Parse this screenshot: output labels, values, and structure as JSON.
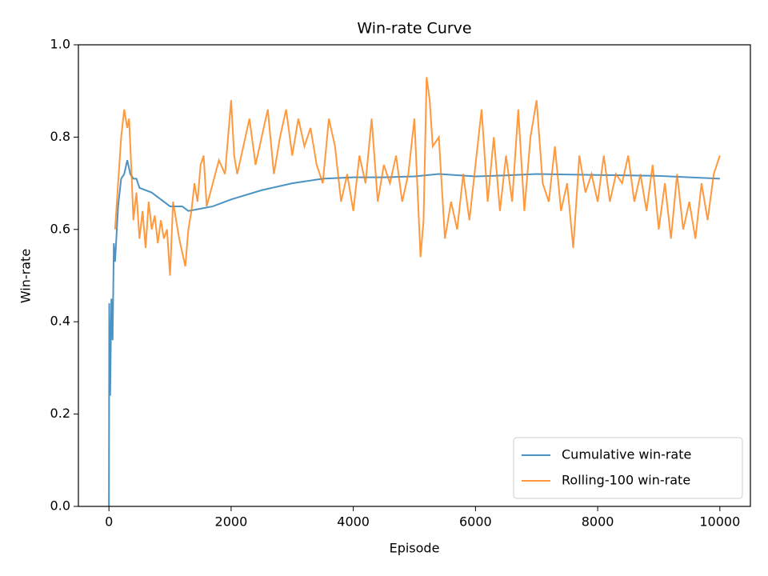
{
  "chart_data": {
    "type": "line",
    "title": "Win-rate Curve",
    "x_label": "Episode",
    "y_label": "Win-rate",
    "xlim": [
      -500,
      10500
    ],
    "ylim": [
      0,
      1
    ],
    "xticks": [
      0,
      2000,
      4000,
      6000,
      8000,
      10000
    ],
    "yticks": [
      {
        "value": 0,
        "label": "0.0"
      },
      {
        "value": 0.2,
        "label": "0.2"
      },
      {
        "value": 0.4,
        "label": "0.4"
      },
      {
        "value": 0.6,
        "label": "0.6"
      },
      {
        "value": 0.8,
        "label": "0.8"
      },
      {
        "value": 1,
        "label": "1.0"
      }
    ],
    "legend": "lower right",
    "series": [
      {
        "name": "Cumulative win-rate",
        "color": "#1f77b4",
        "x": [
          0,
          5,
          20,
          40,
          60,
          80,
          100,
          150,
          200,
          250,
          300,
          350,
          400,
          450,
          500,
          700,
          900,
          1000,
          1200,
          1300,
          1500,
          1700,
          2000,
          2500,
          3000,
          3500,
          4000,
          4500,
          5000,
          5400,
          6000,
          6500,
          7000,
          8000,
          9000,
          9500,
          10000
        ],
        "values": [
          0,
          0.44,
          0.24,
          0.45,
          0.36,
          0.57,
          0.53,
          0.65,
          0.71,
          0.72,
          0.75,
          0.72,
          0.71,
          0.71,
          0.69,
          0.68,
          0.66,
          0.65,
          0.65,
          0.64,
          0.645,
          0.65,
          0.665,
          0.685,
          0.7,
          0.71,
          0.713,
          0.713,
          0.715,
          0.72,
          0.715,
          0.717,
          0.72,
          0.718,
          0.716,
          0.713,
          0.71
        ]
      },
      {
        "name": "Rolling-100 win-rate",
        "color": "#ff7f0e",
        "x": [
          100,
          150,
          200,
          250,
          300,
          330,
          370,
          400,
          450,
          500,
          550,
          600,
          650,
          700,
          750,
          800,
          850,
          900,
          950,
          1000,
          1050,
          1100,
          1150,
          1200,
          1250,
          1300,
          1350,
          1400,
          1450,
          1500,
          1550,
          1600,
          1700,
          1800,
          1900,
          2000,
          2050,
          2100,
          2200,
          2300,
          2400,
          2500,
          2600,
          2700,
          2800,
          2900,
          3000,
          3100,
          3200,
          3300,
          3400,
          3500,
          3600,
          3700,
          3800,
          3900,
          4000,
          4100,
          4200,
          4300,
          4400,
          4500,
          4600,
          4700,
          4800,
          4900,
          5000,
          5100,
          5150,
          5200,
          5250,
          5300,
          5400,
          5500,
          5600,
          5700,
          5800,
          5900,
          6000,
          6100,
          6200,
          6300,
          6400,
          6500,
          6600,
          6700,
          6800,
          6900,
          7000,
          7100,
          7200,
          7300,
          7400,
          7500,
          7600,
          7700,
          7800,
          7900,
          8000,
          8100,
          8200,
          8300,
          8400,
          8500,
          8600,
          8700,
          8800,
          8900,
          9000,
          9100,
          9200,
          9300,
          9400,
          9500,
          9600,
          9700,
          9800,
          9900,
          10000
        ],
        "values": [
          0.6,
          0.7,
          0.8,
          0.86,
          0.82,
          0.84,
          0.72,
          0.62,
          0.68,
          0.58,
          0.64,
          0.56,
          0.66,
          0.6,
          0.63,
          0.57,
          0.62,
          0.58,
          0.6,
          0.5,
          0.66,
          0.62,
          0.58,
          0.55,
          0.52,
          0.6,
          0.64,
          0.7,
          0.66,
          0.74,
          0.76,
          0.65,
          0.7,
          0.75,
          0.72,
          0.88,
          0.76,
          0.72,
          0.78,
          0.84,
          0.74,
          0.8,
          0.86,
          0.72,
          0.8,
          0.86,
          0.76,
          0.84,
          0.78,
          0.82,
          0.74,
          0.7,
          0.84,
          0.78,
          0.66,
          0.72,
          0.64,
          0.76,
          0.7,
          0.84,
          0.66,
          0.74,
          0.7,
          0.76,
          0.66,
          0.72,
          0.84,
          0.54,
          0.62,
          0.93,
          0.88,
          0.78,
          0.8,
          0.58,
          0.66,
          0.6,
          0.72,
          0.62,
          0.74,
          0.86,
          0.66,
          0.8,
          0.64,
          0.76,
          0.66,
          0.86,
          0.64,
          0.8,
          0.88,
          0.7,
          0.66,
          0.78,
          0.64,
          0.7,
          0.56,
          0.76,
          0.68,
          0.72,
          0.66,
          0.76,
          0.66,
          0.72,
          0.7,
          0.76,
          0.66,
          0.72,
          0.64,
          0.74,
          0.6,
          0.7,
          0.58,
          0.72,
          0.6,
          0.66,
          0.58,
          0.7,
          0.62,
          0.72,
          0.76
        ]
      }
    ]
  }
}
